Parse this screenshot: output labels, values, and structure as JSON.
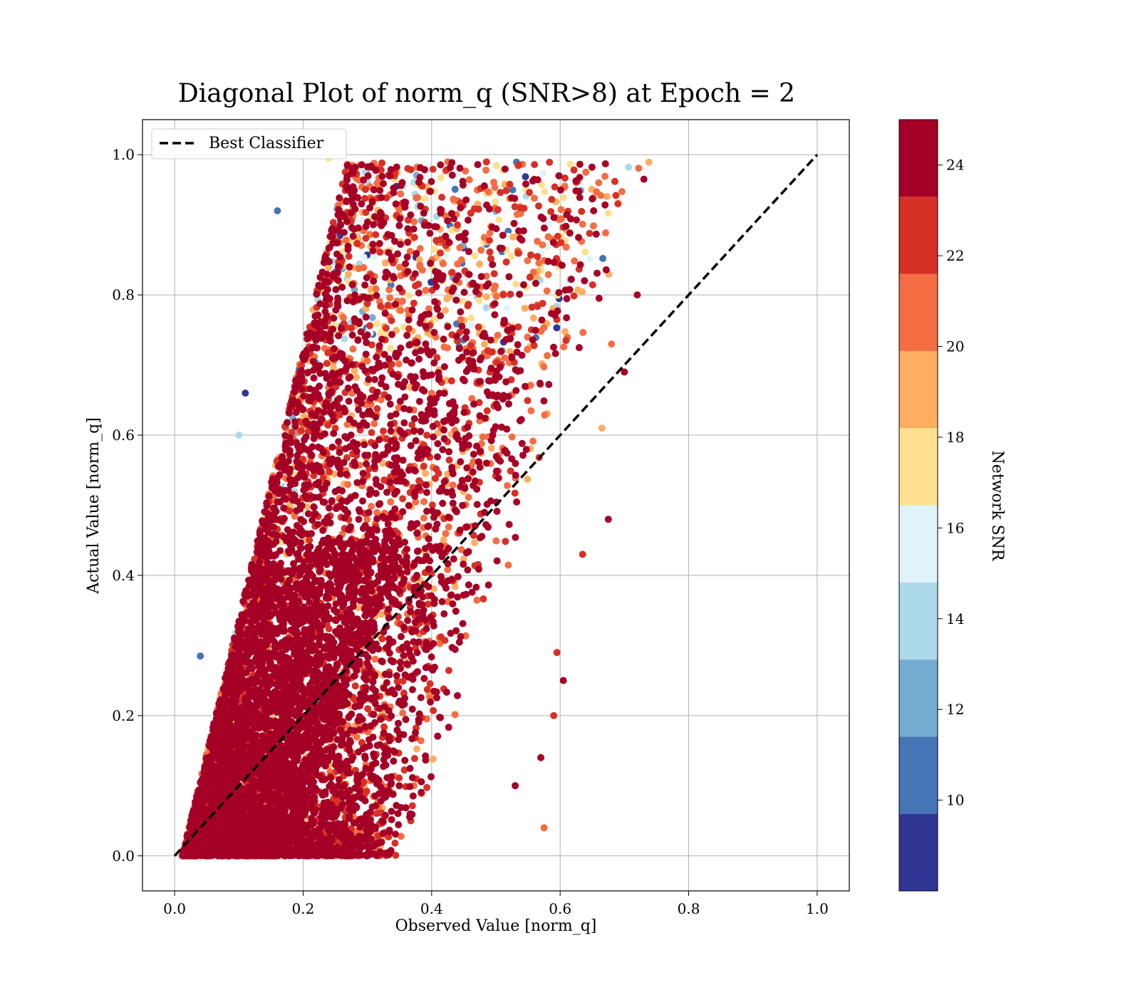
{
  "chart_data": {
    "type": "scatter",
    "title": "Diagonal Plot of norm_q (SNR>8) at Epoch = 2",
    "xlabel": "Observed Value [norm_q]",
    "ylabel": "Actual Value [norm_q]",
    "xlim": [
      -0.05,
      1.05
    ],
    "ylim": [
      -0.05,
      1.05
    ],
    "xticks": [
      0.0,
      0.2,
      0.4,
      0.6,
      0.8,
      1.0
    ],
    "yticks": [
      0.0,
      0.2,
      0.4,
      0.6,
      0.8,
      1.0
    ],
    "xtick_labels": [
      "0.0",
      "0.2",
      "0.4",
      "0.6",
      "0.8",
      "1.0"
    ],
    "ytick_labels": [
      "0.0",
      "0.2",
      "0.4",
      "0.6",
      "0.8",
      "1.0"
    ],
    "grid": true,
    "legend": {
      "position": "upper-left",
      "entries": [
        "Best Classifier"
      ]
    },
    "reference_line": {
      "name": "Best Classifier",
      "x": [
        0.0,
        1.0
      ],
      "y": [
        0.0,
        1.0
      ],
      "style": "dashed",
      "color": "#000000"
    },
    "colorbar": {
      "label": "Network SNR",
      "min": 8,
      "max": 25,
      "ticks": [
        10,
        12,
        14,
        16,
        18,
        20,
        22,
        24
      ],
      "tick_labels": [
        "10",
        "12",
        "14",
        "16",
        "18",
        "20",
        "22",
        "24"
      ],
      "bands": [
        {
          "from": 8.0,
          "to": 9.7,
          "color": "#313695"
        },
        {
          "from": 9.7,
          "to": 11.4,
          "color": "#4575b4"
        },
        {
          "from": 11.4,
          "to": 13.1,
          "color": "#74add1"
        },
        {
          "from": 13.1,
          "to": 14.8,
          "color": "#abd9e9"
        },
        {
          "from": 14.8,
          "to": 16.5,
          "color": "#e0f3f8"
        },
        {
          "from": 16.5,
          "to": 18.2,
          "color": "#fee090"
        },
        {
          "from": 18.2,
          "to": 19.9,
          "color": "#fdae61"
        },
        {
          "from": 19.9,
          "to": 21.6,
          "color": "#f46d43"
        },
        {
          "from": 21.6,
          "to": 23.3,
          "color": "#d73027"
        },
        {
          "from": 23.3,
          "to": 25.0,
          "color": "#a50026"
        }
      ]
    },
    "point_cloud": {
      "description_of_distribution": "dense scatter, most points near the lower-left, spreading up to x≈0.72 and y≈1.0",
      "outliers": [
        {
          "x": 0.72,
          "y": 0.8,
          "snr": 24.5
        },
        {
          "x": 0.7,
          "y": 0.69,
          "snr": 24.5
        },
        {
          "x": 0.69,
          "y": 0.93,
          "snr": 22.5
        },
        {
          "x": 0.68,
          "y": 0.73,
          "snr": 21.0
        },
        {
          "x": 0.675,
          "y": 0.48,
          "snr": 24.5
        },
        {
          "x": 0.66,
          "y": 0.96,
          "snr": 21.0
        },
        {
          "x": 0.665,
          "y": 0.61,
          "snr": 19.5
        },
        {
          "x": 0.64,
          "y": 0.975,
          "snr": 20.5
        },
        {
          "x": 0.635,
          "y": 0.43,
          "snr": 22.5
        },
        {
          "x": 0.605,
          "y": 0.25,
          "snr": 24.5
        },
        {
          "x": 0.595,
          "y": 0.29,
          "snr": 22.5
        },
        {
          "x": 0.59,
          "y": 0.2,
          "snr": 22.5
        },
        {
          "x": 0.575,
          "y": 0.04,
          "snr": 21.0
        },
        {
          "x": 0.57,
          "y": 0.14,
          "snr": 24.5
        },
        {
          "x": 0.53,
          "y": 0.1,
          "snr": 24.5
        },
        {
          "x": 0.24,
          "y": 0.995,
          "snr": 17.5
        },
        {
          "x": 0.16,
          "y": 0.92,
          "snr": 10.5
        },
        {
          "x": 0.11,
          "y": 0.66,
          "snr": 8.5
        },
        {
          "x": 0.1,
          "y": 0.6,
          "snr": 13.5
        },
        {
          "x": 0.04,
          "y": 0.285,
          "snr": 10.5
        }
      ]
    }
  }
}
